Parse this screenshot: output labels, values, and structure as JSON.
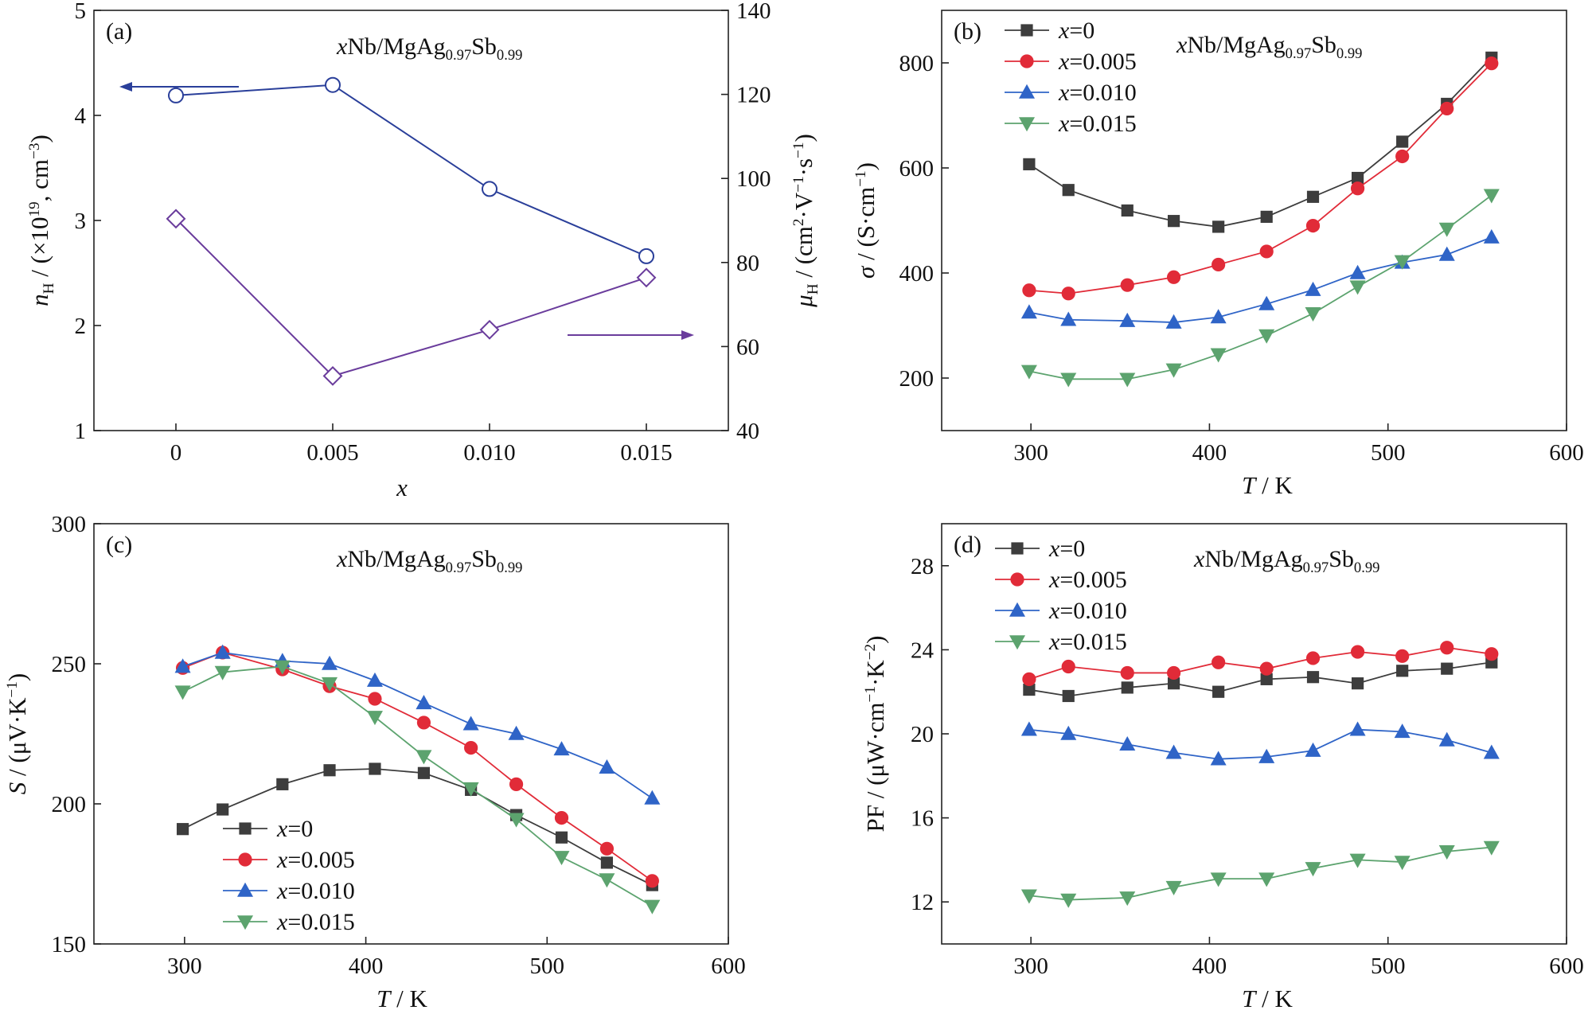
{
  "colors": {
    "x0": "#3d3d3d",
    "x005": "#e12b38",
    "x010": "#2f64c7",
    "x015": "#5ca36e",
    "nH": "#2a3f9a",
    "muH": "#6a3c9c"
  },
  "chart_data": [
    {
      "panel": "(a)",
      "type": "line",
      "title": "xNb/MgAg0.97Sb0.99",
      "xlabel": "x",
      "ylabel_left": "nH / (×1019, cm−3)",
      "ylabel_right": "μH / (cm2·V−1·s−1)",
      "categories": [
        "0",
        "0.005",
        "0.010",
        "0.015"
      ],
      "ylim_left": [
        1,
        5
      ],
      "ylim_right": [
        40,
        140
      ],
      "yticks_left": [
        "1",
        "2",
        "3",
        "4",
        "5"
      ],
      "yticks_right": [
        "40",
        "60",
        "80",
        "100",
        "120",
        "140"
      ],
      "series": [
        {
          "axis": "left",
          "marker": "circle",
          "values": [
            4.19,
            4.29,
            3.3,
            2.66
          ]
        },
        {
          "axis": "right",
          "marker": "diamond",
          "values": [
            90.4,
            53.0,
            64.0,
            76.4
          ]
        }
      ]
    },
    {
      "panel": "(b)",
      "type": "line",
      "title": "xNb/MgAg0.97Sb0.99",
      "xlabel": "T / K",
      "ylabel": "σ / (S·cm−1)",
      "xlim": [
        250,
        600
      ],
      "ylim": [
        100,
        900
      ],
      "xticks": [
        "300",
        "400",
        "500",
        "600"
      ],
      "yticks": [
        "200",
        "400",
        "600",
        "800"
      ],
      "x": [
        299,
        321,
        354,
        380,
        405,
        432,
        458,
        483,
        508,
        533,
        558
      ],
      "legend_position": "top-left",
      "series": [
        {
          "name": "x=0",
          "values": [
            607,
            558,
            519,
            499,
            488,
            507,
            545,
            581,
            650,
            722,
            810
          ]
        },
        {
          "name": "x=0.005",
          "values": [
            367,
            361,
            377,
            392,
            416,
            441,
            490,
            561,
            622,
            713,
            799
          ]
        },
        {
          "name": "x=0.010",
          "values": [
            325,
            311,
            309,
            306,
            316,
            341,
            368,
            400,
            420,
            435,
            468
          ]
        },
        {
          "name": "x=0.015",
          "values": [
            213,
            198,
            198,
            216,
            245,
            281,
            323,
            374,
            422,
            484,
            548
          ]
        }
      ]
    },
    {
      "panel": "(c)",
      "type": "line",
      "title": "xNb/MgAg0.97Sb0.99",
      "xlabel": "T / K",
      "ylabel": "S / (μV·K−1)",
      "xlim": [
        250,
        600
      ],
      "ylim": [
        150,
        300
      ],
      "xticks": [
        "300",
        "400",
        "500",
        "600"
      ],
      "yticks": [
        "150",
        "200",
        "250",
        "300"
      ],
      "x": [
        299,
        321,
        354,
        380,
        405,
        432,
        458,
        483,
        508,
        533,
        558
      ],
      "legend_position": "bottom-left",
      "series": [
        {
          "name": "x=0",
          "values": [
            191,
            198,
            207,
            212,
            212.5,
            211,
            205,
            196,
            188,
            179,
            171
          ]
        },
        {
          "name": "x=0.005",
          "values": [
            248.5,
            254,
            248,
            242,
            237.5,
            229,
            220,
            207,
            195,
            184,
            172.5
          ]
        },
        {
          "name": "x=0.010",
          "values": [
            249,
            254,
            251,
            250,
            244,
            236,
            228.5,
            225,
            219.5,
            213,
            202
          ]
        },
        {
          "name": "x=0.015",
          "values": [
            240,
            247,
            249,
            243,
            231,
            217,
            205.5,
            194.5,
            181,
            173,
            163.5
          ]
        }
      ]
    },
    {
      "panel": "(d)",
      "type": "line",
      "title": "xNb/MgAg0.97Sb0.99",
      "xlabel": "T / K",
      "ylabel": "PF / (μW·cm−1·K−2)",
      "xlim": [
        250,
        600
      ],
      "ylim": [
        10,
        30
      ],
      "xticks": [
        "300",
        "400",
        "500",
        "600"
      ],
      "yticks": [
        "12",
        "16",
        "20",
        "24",
        "28"
      ],
      "x": [
        299,
        321,
        354,
        380,
        405,
        432,
        458,
        483,
        508,
        533,
        558
      ],
      "legend_position": "top-left",
      "series": [
        {
          "name": "x=0",
          "values": [
            22.1,
            21.8,
            22.2,
            22.4,
            22.0,
            22.6,
            22.7,
            22.4,
            23.0,
            23.1,
            23.4
          ]
        },
        {
          "name": "x=0.005",
          "values": [
            22.6,
            23.2,
            22.9,
            22.9,
            23.4,
            23.1,
            23.6,
            23.9,
            23.7,
            24.1,
            23.8
          ]
        },
        {
          "name": "x=0.010",
          "values": [
            20.2,
            20.0,
            19.5,
            19.1,
            18.8,
            18.9,
            19.2,
            20.2,
            20.1,
            19.7,
            19.1
          ]
        },
        {
          "name": "x=0.015",
          "values": [
            12.3,
            12.1,
            12.2,
            12.7,
            13.1,
            13.1,
            13.6,
            14.0,
            13.9,
            14.4,
            14.6
          ]
        }
      ]
    }
  ]
}
